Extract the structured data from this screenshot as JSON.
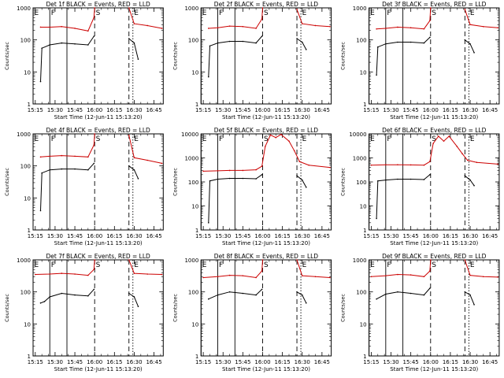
{
  "chart_data": {
    "type": "line",
    "ytitle": "Counts/sec",
    "xtitle": "Start Time (12-Jun-11 15:13:20)",
    "xtick_labels": [
      "15:15",
      "15:30",
      "15:45",
      "16:00",
      "16:15",
      "16:30",
      "16:45"
    ],
    "xtick_minutes": [
      15,
      30,
      45,
      60,
      75,
      90,
      105
    ],
    "xlim_minutes": [
      13.33,
      112
    ],
    "ylog": true,
    "series_colors": {
      "events": "#000000",
      "lld": "#cc0000"
    },
    "markers": [
      {
        "label": "E",
        "minute": 13.33,
        "style": "solid"
      },
      {
        "label": "F",
        "minute": 26,
        "style": "solid"
      },
      {
        "label": "S",
        "minute": 60,
        "style": "dashed"
      },
      {
        "label": "E",
        "minute": 89,
        "style": "dotted"
      }
    ],
    "extra_lines": [
      {
        "minute": 39,
        "style": "solid"
      },
      {
        "minute": 86,
        "style": "dashed"
      }
    ],
    "gaps": [
      [
        60,
        84
      ]
    ],
    "panels": [
      {
        "title": "Det 1f BLACK = Events, RED = LLD",
        "ytick_labels": [
          "1",
          "10",
          "100",
          "1000"
        ],
        "ylim": [
          1,
          1000
        ],
        "events": [
          {
            "x": 19,
            "y": 5
          },
          {
            "x": 20,
            "y": 55
          },
          {
            "x": 26,
            "y": 70
          },
          {
            "x": 35,
            "y": 80
          },
          {
            "x": 45,
            "y": 75
          },
          {
            "x": 55,
            "y": 70
          },
          {
            "x": 59.5,
            "y": 130
          }
        ],
        "lld": [
          {
            "x": 19,
            "y": 250
          },
          {
            "x": 26,
            "y": 250
          },
          {
            "x": 35,
            "y": 260
          },
          {
            "x": 45,
            "y": 230
          },
          {
            "x": 55,
            "y": 190
          },
          {
            "x": 59.5,
            "y": 500
          },
          {
            "x": 60,
            "y": 1000
          }
        ],
        "events_after": [
          {
            "x": 86,
            "y": 110
          },
          {
            "x": 90,
            "y": 80
          },
          {
            "x": 93,
            "y": 25
          }
        ],
        "lld_after": [
          {
            "x": 86,
            "y": 1000
          },
          {
            "x": 90,
            "y": 320
          },
          {
            "x": 100,
            "y": 280
          },
          {
            "x": 111,
            "y": 230
          }
        ]
      },
      {
        "title": "Det 2f BLACK = Events, RED = LLD",
        "ytick_labels": [
          "1",
          "10",
          "100",
          "1000"
        ],
        "ylim": [
          1,
          1000
        ],
        "events": [
          {
            "x": 19,
            "y": 7
          },
          {
            "x": 20,
            "y": 65
          },
          {
            "x": 26,
            "y": 80
          },
          {
            "x": 35,
            "y": 90
          },
          {
            "x": 45,
            "y": 90
          },
          {
            "x": 55,
            "y": 80
          },
          {
            "x": 59.5,
            "y": 130
          }
        ],
        "lld": [
          {
            "x": 19,
            "y": 230
          },
          {
            "x": 26,
            "y": 240
          },
          {
            "x": 35,
            "y": 270
          },
          {
            "x": 45,
            "y": 260
          },
          {
            "x": 55,
            "y": 230
          },
          {
            "x": 59.5,
            "y": 450
          },
          {
            "x": 60,
            "y": 1000
          }
        ],
        "events_after": [
          {
            "x": 86,
            "y": 110
          },
          {
            "x": 90,
            "y": 85
          },
          {
            "x": 93,
            "y": 50
          }
        ],
        "lld_after": [
          {
            "x": 86,
            "y": 900
          },
          {
            "x": 90,
            "y": 320
          },
          {
            "x": 100,
            "y": 280
          },
          {
            "x": 111,
            "y": 260
          }
        ]
      },
      {
        "title": "Det 3f BLACK = Events, RED = LLD",
        "ytick_labels": [
          "1",
          "10",
          "100",
          "1000"
        ],
        "ylim": [
          1,
          1000
        ],
        "events": [
          {
            "x": 19,
            "y": 8
          },
          {
            "x": 20,
            "y": 60
          },
          {
            "x": 26,
            "y": 75
          },
          {
            "x": 35,
            "y": 85
          },
          {
            "x": 45,
            "y": 85
          },
          {
            "x": 55,
            "y": 80
          },
          {
            "x": 59.5,
            "y": 120
          }
        ],
        "lld": [
          {
            "x": 19,
            "y": 220
          },
          {
            "x": 26,
            "y": 230
          },
          {
            "x": 35,
            "y": 250
          },
          {
            "x": 45,
            "y": 240
          },
          {
            "x": 55,
            "y": 220
          },
          {
            "x": 59.5,
            "y": 400
          },
          {
            "x": 60,
            "y": 1000
          }
        ],
        "events_after": [
          {
            "x": 86,
            "y": 100
          },
          {
            "x": 90,
            "y": 75
          },
          {
            "x": 93,
            "y": 40
          }
        ],
        "lld_after": [
          {
            "x": 86,
            "y": 900
          },
          {
            "x": 90,
            "y": 300
          },
          {
            "x": 100,
            "y": 260
          },
          {
            "x": 111,
            "y": 240
          }
        ]
      },
      {
        "title": "Det 4f BLACK = Events, RED = LLD",
        "ytick_labels": [
          "1",
          "10",
          "100",
          "1000"
        ],
        "ylim": [
          1,
          1000
        ],
        "events": [
          {
            "x": 19,
            "y": 4
          },
          {
            "x": 20,
            "y": 60
          },
          {
            "x": 26,
            "y": 75
          },
          {
            "x": 35,
            "y": 80
          },
          {
            "x": 45,
            "y": 80
          },
          {
            "x": 55,
            "y": 75
          },
          {
            "x": 59.5,
            "y": 120
          }
        ],
        "lld": [
          {
            "x": 19,
            "y": 190
          },
          {
            "x": 26,
            "y": 200
          },
          {
            "x": 35,
            "y": 210
          },
          {
            "x": 45,
            "y": 200
          },
          {
            "x": 55,
            "y": 190
          },
          {
            "x": 59.5,
            "y": 450
          },
          {
            "x": 60,
            "y": 1000
          }
        ],
        "events_after": [
          {
            "x": 86,
            "y": 100
          },
          {
            "x": 90,
            "y": 75
          },
          {
            "x": 93,
            "y": 40
          }
        ],
        "lld_after": [
          {
            "x": 86,
            "y": 900
          },
          {
            "x": 90,
            "y": 180
          },
          {
            "x": 100,
            "y": 150
          },
          {
            "x": 111,
            "y": 120
          }
        ]
      },
      {
        "title": "Det 5f BLACK = Events, RED = LLD",
        "ytick_labels": [
          "1",
          "10",
          "100",
          "1000",
          "10000"
        ],
        "ylim": [
          1,
          10000
        ],
        "events": [
          {
            "x": 19,
            "y": 2
          },
          {
            "x": 20,
            "y": 110
          },
          {
            "x": 26,
            "y": 130
          },
          {
            "x": 35,
            "y": 140
          },
          {
            "x": 45,
            "y": 140
          },
          {
            "x": 55,
            "y": 135
          },
          {
            "x": 59.5,
            "y": 200
          }
        ],
        "lld": [
          {
            "x": 15,
            "y": 280
          },
          {
            "x": 26,
            "y": 290
          },
          {
            "x": 35,
            "y": 300
          },
          {
            "x": 45,
            "y": 300
          },
          {
            "x": 55,
            "y": 320
          },
          {
            "x": 59.5,
            "y": 450
          },
          {
            "x": 62,
            "y": 3000
          },
          {
            "x": 66,
            "y": 9000
          },
          {
            "x": 70,
            "y": 7000
          },
          {
            "x": 74,
            "y": 9500
          },
          {
            "x": 80,
            "y": 5000
          },
          {
            "x": 84,
            "y": 2000
          },
          {
            "x": 88,
            "y": 700
          },
          {
            "x": 95,
            "y": 500
          },
          {
            "x": 111,
            "y": 400
          }
        ],
        "events_after": [
          {
            "x": 86,
            "y": 180
          },
          {
            "x": 90,
            "y": 120
          },
          {
            "x": 93,
            "y": 60
          }
        ],
        "lld_after": []
      },
      {
        "title": "Det 6f BLACK = Events, RED = LLD",
        "ytick_labels": [
          "1",
          "10",
          "100",
          "1000",
          "10000"
        ],
        "ylim": [
          1,
          10000
        ],
        "events": [
          {
            "x": 19,
            "y": 3
          },
          {
            "x": 20,
            "y": 110
          },
          {
            "x": 26,
            "y": 120
          },
          {
            "x": 35,
            "y": 130
          },
          {
            "x": 45,
            "y": 130
          },
          {
            "x": 55,
            "y": 125
          },
          {
            "x": 59.5,
            "y": 200
          }
        ],
        "lld": [
          {
            "x": 15,
            "y": 500
          },
          {
            "x": 26,
            "y": 520
          },
          {
            "x": 35,
            "y": 520
          },
          {
            "x": 45,
            "y": 510
          },
          {
            "x": 55,
            "y": 500
          },
          {
            "x": 59.5,
            "y": 700
          },
          {
            "x": 62,
            "y": 4000
          },
          {
            "x": 66,
            "y": 8000
          },
          {
            "x": 70,
            "y": 5000
          },
          {
            "x": 74,
            "y": 8000
          },
          {
            "x": 80,
            "y": 3000
          },
          {
            "x": 84,
            "y": 1500
          },
          {
            "x": 88,
            "y": 800
          },
          {
            "x": 95,
            "y": 650
          },
          {
            "x": 111,
            "y": 550
          }
        ],
        "events_after": [
          {
            "x": 86,
            "y": 180
          },
          {
            "x": 90,
            "y": 120
          },
          {
            "x": 93,
            "y": 70
          }
        ],
        "lld_after": []
      },
      {
        "title": "Det 7f BLACK = Events, RED = LLD",
        "ytick_labels": [
          "1",
          "10",
          "100",
          "1000"
        ],
        "ylim": [
          1,
          1000
        ],
        "events": [
          {
            "x": 19,
            "y": 45
          },
          {
            "x": 22,
            "y": 50
          },
          {
            "x": 26,
            "y": 70
          },
          {
            "x": 35,
            "y": 90
          },
          {
            "x": 45,
            "y": 80
          },
          {
            "x": 55,
            "y": 75
          },
          {
            "x": 59.5,
            "y": 120
          }
        ],
        "lld": [
          {
            "x": 15,
            "y": 350
          },
          {
            "x": 26,
            "y": 360
          },
          {
            "x": 35,
            "y": 380
          },
          {
            "x": 45,
            "y": 360
          },
          {
            "x": 55,
            "y": 330
          },
          {
            "x": 59.5,
            "y": 500
          },
          {
            "x": 60,
            "y": 1000
          }
        ],
        "events_after": [
          {
            "x": 86,
            "y": 90
          },
          {
            "x": 90,
            "y": 70
          },
          {
            "x": 93,
            "y": 35
          }
        ],
        "lld_after": [
          {
            "x": 86,
            "y": 1000
          },
          {
            "x": 90,
            "y": 380
          },
          {
            "x": 100,
            "y": 360
          },
          {
            "x": 111,
            "y": 350
          }
        ]
      },
      {
        "title": "Det 8f BLACK = Events, RED = LLD",
        "ytick_labels": [
          "1",
          "10",
          "100",
          "1000"
        ],
        "ylim": [
          1,
          1000
        ],
        "events": [
          {
            "x": 19,
            "y": 60
          },
          {
            "x": 26,
            "y": 80
          },
          {
            "x": 35,
            "y": 100
          },
          {
            "x": 45,
            "y": 90
          },
          {
            "x": 55,
            "y": 80
          },
          {
            "x": 59.5,
            "y": 120
          }
        ],
        "lld": [
          {
            "x": 15,
            "y": 280
          },
          {
            "x": 26,
            "y": 300
          },
          {
            "x": 35,
            "y": 330
          },
          {
            "x": 45,
            "y": 320
          },
          {
            "x": 55,
            "y": 280
          },
          {
            "x": 59.5,
            "y": 450
          },
          {
            "x": 60,
            "y": 1000
          }
        ],
        "events_after": [
          {
            "x": 86,
            "y": 100
          },
          {
            "x": 90,
            "y": 80
          },
          {
            "x": 93,
            "y": 45
          }
        ],
        "lld_after": [
          {
            "x": 86,
            "y": 1000
          },
          {
            "x": 90,
            "y": 320
          },
          {
            "x": 100,
            "y": 300
          },
          {
            "x": 111,
            "y": 280
          }
        ]
      },
      {
        "title": "Det 9f BLACK = Events, RED = LLD",
        "ytick_labels": [
          "1",
          "10",
          "100",
          "1000"
        ],
        "ylim": [
          1,
          1000
        ],
        "events": [
          {
            "x": 19,
            "y": 60
          },
          {
            "x": 26,
            "y": 85
          },
          {
            "x": 35,
            "y": 100
          },
          {
            "x": 45,
            "y": 90
          },
          {
            "x": 55,
            "y": 80
          },
          {
            "x": 59.5,
            "y": 130
          }
        ],
        "lld": [
          {
            "x": 15,
            "y": 300
          },
          {
            "x": 26,
            "y": 320
          },
          {
            "x": 35,
            "y": 350
          },
          {
            "x": 45,
            "y": 340
          },
          {
            "x": 55,
            "y": 300
          },
          {
            "x": 59.5,
            "y": 450
          },
          {
            "x": 60,
            "y": 1000
          }
        ],
        "events_after": [
          {
            "x": 86,
            "y": 100
          },
          {
            "x": 90,
            "y": 80
          },
          {
            "x": 93,
            "y": 40
          }
        ],
        "lld_after": [
          {
            "x": 86,
            "y": 1000
          },
          {
            "x": 90,
            "y": 330
          },
          {
            "x": 100,
            "y": 300
          },
          {
            "x": 111,
            "y": 290
          }
        ]
      }
    ]
  }
}
